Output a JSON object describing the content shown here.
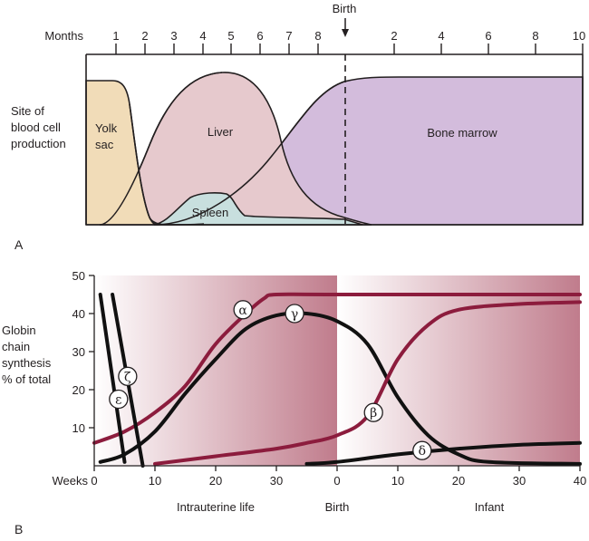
{
  "panel_a": {
    "label": "A",
    "birth_label": "Birth",
    "axis_label": "Months",
    "ticks_prenatal": [
      "1",
      "2",
      "3",
      "4",
      "5",
      "6",
      "7",
      "8"
    ],
    "ticks_postnatal": [
      "2",
      "4",
      "6",
      "8",
      "10"
    ],
    "y_label": [
      "Site of",
      "blood cell",
      "production"
    ],
    "regions": [
      {
        "name": "Yolk sac",
        "label_lines": [
          "Yolk",
          "sac"
        ],
        "color": "#f1dcb8",
        "start_month": 0,
        "peak_months": [
          0,
          1.5
        ],
        "end_month": 3
      },
      {
        "name": "Liver",
        "label_lines": [
          "Liver"
        ],
        "color": "#e7c8cc",
        "start_month": 2,
        "peak_months": [
          4.5,
          5
        ],
        "end_month": 11.5
      },
      {
        "name": "Spleen",
        "label_lines": [
          "Spleen"
        ],
        "color": "#c5dedd",
        "start_month": 3,
        "peak_months": [
          4,
          5
        ],
        "end_month": 11
      },
      {
        "name": "Bone marrow",
        "label_lines": [
          "Bone marrow"
        ],
        "color": "#d3bcdc",
        "start_month": 2.5,
        "peak_months": [
          10,
          19
        ],
        "end_month": 19
      }
    ]
  },
  "panel_b": {
    "label": "B",
    "chart_data": {
      "type": "line",
      "title": "",
      "ylabel": "Globin chain synthesis % of total",
      "xlabel": "Weeks",
      "ylim": [
        0,
        50
      ],
      "yticks": [
        "10",
        "20",
        "30",
        "40",
        "50"
      ],
      "xticks_prenatal": [
        "0",
        "10",
        "20",
        "30"
      ],
      "xticks_postnatal": [
        "0",
        "10",
        "20",
        "30",
        "40"
      ],
      "x_note": "x in weeks relative to conception; birth at 40; postnatal weeks = x - 40",
      "xlim": [
        0,
        80
      ],
      "period_labels": [
        "Intrauterine life",
        "Birth",
        "Infant"
      ],
      "series": [
        {
          "name": "α",
          "color": "#8c1c3d",
          "points": [
            [
              0,
              6
            ],
            [
              5,
              9
            ],
            [
              10,
              14
            ],
            [
              15,
              21
            ],
            [
              20,
              32
            ],
            [
              25,
              40
            ],
            [
              28,
              44
            ],
            [
              30,
              45
            ],
            [
              40,
              45
            ],
            [
              80,
              45
            ]
          ]
        },
        {
          "name": "γ",
          "color": "#111111",
          "points": [
            [
              1,
              1
            ],
            [
              5,
              3
            ],
            [
              10,
              9
            ],
            [
              15,
              19
            ],
            [
              20,
              28
            ],
            [
              25,
              36
            ],
            [
              30,
              39.5
            ],
            [
              35,
              40
            ],
            [
              40,
              38
            ],
            [
              45,
              32
            ],
            [
              50,
              18
            ],
            [
              55,
              8
            ],
            [
              60,
              3
            ],
            [
              65,
              1
            ],
            [
              80,
              0.5
            ]
          ]
        },
        {
          "name": "β",
          "color": "#8c1c3d",
          "points": [
            [
              10,
              0.5
            ],
            [
              20,
              2.5
            ],
            [
              30,
              4.5
            ],
            [
              35,
              6
            ],
            [
              40,
              8
            ],
            [
              45,
              13
            ],
            [
              50,
              28
            ],
            [
              55,
              37
            ],
            [
              60,
              41
            ],
            [
              70,
              42.5
            ],
            [
              80,
              43
            ]
          ]
        },
        {
          "name": "δ",
          "color": "#111111",
          "points": [
            [
              35,
              0.5
            ],
            [
              40,
              1
            ],
            [
              50,
              3
            ],
            [
              60,
              4.5
            ],
            [
              70,
              5.5
            ],
            [
              80,
              6
            ]
          ]
        },
        {
          "name": "ε",
          "color": "#111111",
          "points": [
            [
              1,
              45
            ],
            [
              5,
              1
            ]
          ]
        },
        {
          "name": "ζ",
          "color": "#111111",
          "points": [
            [
              3,
              45
            ],
            [
              8,
              0
            ]
          ]
        }
      ],
      "series_labels": [
        {
          "name": "α",
          "x": 24.5,
          "y": 41
        },
        {
          "name": "γ",
          "x": 33,
          "y": 40
        },
        {
          "name": "β",
          "x": 46,
          "y": 14
        },
        {
          "name": "δ",
          "x": 54,
          "y": 4
        },
        {
          "name": "ε",
          "x": 4,
          "y": 17.5
        },
        {
          "name": "ζ",
          "x": 5.5,
          "y": 23.5
        }
      ],
      "background_gradient": {
        "light": "#ffffff",
        "dark": "#c38190"
      }
    }
  }
}
